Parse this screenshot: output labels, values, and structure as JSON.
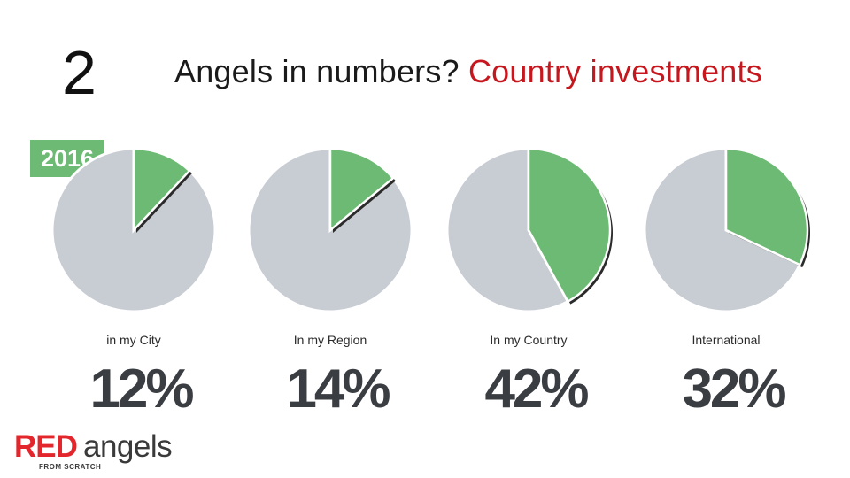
{
  "slide_number": "2",
  "title": {
    "main": "Angels in numbers? ",
    "highlight": "Country investments"
  },
  "year_badge": "2016",
  "logo": {
    "red_part": "RED",
    "rest_part": "angels",
    "tagline": "FROM SCRATCH"
  },
  "colors": {
    "accent_red": "#c7171e",
    "pie_green": "#6dba74",
    "pie_gray": "#c8ccd3",
    "value_text": "#3a3d42"
  },
  "chart_data": [
    {
      "type": "pie",
      "label": "in my City",
      "value_text": "12%",
      "slices": [
        {
          "name": "in my City",
          "value": 12
        },
        {
          "name": "",
          "value": 88
        }
      ]
    },
    {
      "type": "pie",
      "label": "In my Region",
      "value_text": "14%",
      "slices": [
        {
          "name": "In my Region",
          "value": 14
        },
        {
          "name": "",
          "value": 86
        }
      ]
    },
    {
      "type": "pie",
      "label": "In my Country",
      "value_text": "42%",
      "slices": [
        {
          "name": "In my Country",
          "value": 42
        },
        {
          "name": "",
          "value": 58
        }
      ]
    },
    {
      "type": "pie",
      "label": "International",
      "value_text": "32%",
      "slices": [
        {
          "name": "International",
          "value": 32
        },
        {
          "name": "",
          "value": 68
        }
      ]
    }
  ]
}
